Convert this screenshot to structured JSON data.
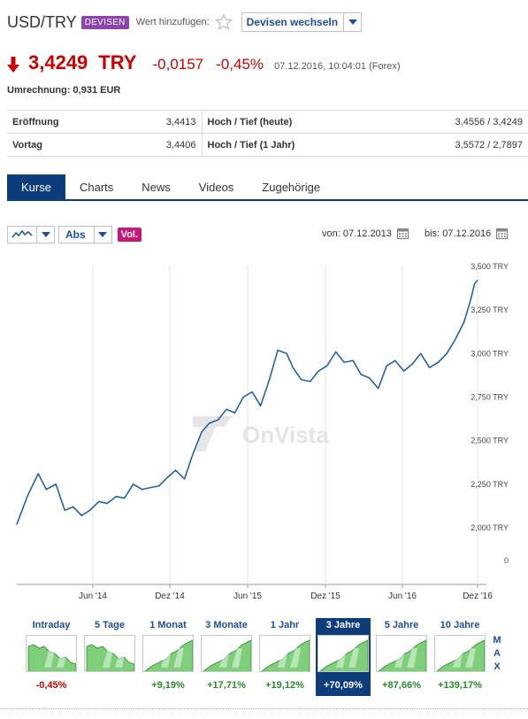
{
  "header": {
    "title": "USD/TRY",
    "badge": "DEVISEN",
    "watchlist_label": "Wert hinzufügen:",
    "switch_label": "Devisen wechseln"
  },
  "quote": {
    "price": "3,4249",
    "currency": "TRY",
    "change": "-0,0157",
    "change_pct": "-0,45%",
    "timestamp": "07.12.2016, 10:04:01 (Forex)",
    "conversion": "Umrechnung: 0,931 EUR",
    "color_negative": "#cc0000"
  },
  "stats": [
    {
      "label": "Eröffnung",
      "value": "3,4413",
      "label2": "Hoch / Tief (heute)",
      "value2": "3,4556 / 3,4249"
    },
    {
      "label": "Vortag",
      "value": "3,4406",
      "label2": "Hoch / Tief (1 Jahr)",
      "value2": "3,5572 / 2,7897"
    }
  ],
  "tabs": [
    "Kurse",
    "Charts",
    "News",
    "Videos",
    "Zugehörige"
  ],
  "tools": {
    "scale_label": "Abs",
    "vol_label": "Vol.",
    "from_label": "von:",
    "from_date": "07.12.2013",
    "to_label": "bis:",
    "to_date": "07.12.2016"
  },
  "chart_data": {
    "type": "line",
    "watermark": "OnVista",
    "x_ticks": [
      "Jun '14",
      "Dez '14",
      "Jun '15",
      "Dez '15",
      "Jun '16",
      "Dez '16"
    ],
    "y_ticks": [
      "3,500 TRY",
      "3,250 TRY",
      "3,000 TRY",
      "2,750 TRY",
      "2,500 TRY",
      "2,250 TRY",
      "2,000 TRY",
      "0"
    ],
    "ylim": [
      2.0,
      3.5
    ],
    "series_color": "#1a5a9a",
    "series": [
      {
        "x": [
          "2013-12-07",
          "2014-01-01",
          "2014-01-27",
          "2014-02-15",
          "2014-03-10",
          "2014-03-31",
          "2014-04-20",
          "2014-05-10",
          "2014-05-30",
          "2014-06-20",
          "2014-07-10",
          "2014-08-01",
          "2014-08-20",
          "2014-09-10",
          "2014-10-01",
          "2014-10-20",
          "2014-11-10",
          "2014-12-01",
          "2014-12-20",
          "2015-01-10",
          "2015-01-31",
          "2015-02-20",
          "2015-03-10",
          "2015-03-31",
          "2015-04-20",
          "2015-05-10",
          "2015-05-30",
          "2015-06-20",
          "2015-07-10",
          "2015-07-31",
          "2015-08-20",
          "2015-09-10",
          "2015-09-25",
          "2015-10-15",
          "2015-11-05",
          "2015-11-25",
          "2015-12-15",
          "2016-01-05",
          "2016-01-25",
          "2016-02-15",
          "2016-03-05",
          "2016-03-25",
          "2016-04-15",
          "2016-05-05",
          "2016-05-25",
          "2016-06-15",
          "2016-07-05",
          "2016-07-25",
          "2016-08-15",
          "2016-09-05",
          "2016-09-25",
          "2016-10-15",
          "2016-11-05",
          "2016-11-20",
          "2016-11-30",
          "2016-12-07"
        ],
        "y": [
          2.02,
          2.18,
          2.31,
          2.22,
          2.25,
          2.1,
          2.12,
          2.07,
          2.1,
          2.15,
          2.14,
          2.18,
          2.17,
          2.25,
          2.22,
          2.23,
          2.24,
          2.29,
          2.33,
          2.28,
          2.43,
          2.55,
          2.6,
          2.62,
          2.68,
          2.66,
          2.75,
          2.78,
          2.7,
          2.85,
          3.02,
          3.0,
          2.92,
          2.85,
          2.84,
          2.9,
          2.93,
          3.01,
          2.95,
          2.96,
          2.88,
          2.86,
          2.8,
          2.93,
          2.96,
          2.9,
          2.94,
          3.0,
          2.92,
          2.95,
          3.0,
          3.08,
          3.18,
          3.3,
          3.4,
          3.42
        ]
      }
    ]
  },
  "thumbnails": [
    {
      "label": "Intraday",
      "pct": "-0,45%",
      "trend": "neg"
    },
    {
      "label": "5 Tage",
      "pct": "",
      "trend": "neg"
    },
    {
      "label": "1 Monat",
      "pct": "+9,19%",
      "trend": "pos"
    },
    {
      "label": "3 Monate",
      "pct": "+17,71%",
      "trend": "pos"
    },
    {
      "label": "1 Jahr",
      "pct": "+19,12%",
      "trend": "pos"
    },
    {
      "label": "3 Jahre",
      "pct": "+70,09%",
      "trend": "pos",
      "active": true
    },
    {
      "label": "5 Jahre",
      "pct": "+87,66%",
      "trend": "pos"
    },
    {
      "label": "10 Jahre",
      "pct": "+139,17%",
      "trend": "pos"
    }
  ],
  "max_label": "MAX"
}
